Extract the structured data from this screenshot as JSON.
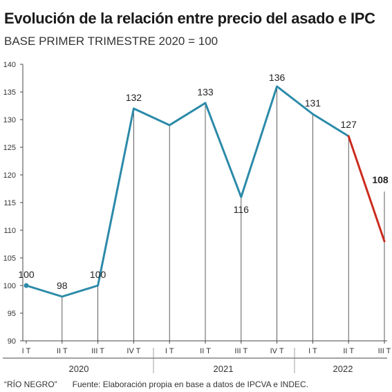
{
  "chart_data": {
    "type": "line",
    "title": "Evolución de la relación entre precio del asado e IPC",
    "subtitle": "BASE PRIMER TRIMESTRE 2020 = 100",
    "x": [
      "I T",
      "II T",
      "III T",
      "IV T",
      "I T",
      "II T",
      "III T",
      "IV T",
      "I T",
      "II T",
      "III T"
    ],
    "years": [
      {
        "label": "2020",
        "start": 0,
        "end": 3
      },
      {
        "label": "2021",
        "start": 4,
        "end": 7
      },
      {
        "label": "2022",
        "start": 8,
        "end": 10
      }
    ],
    "series": [
      {
        "values": [
          100,
          98,
          100,
          132,
          129,
          133,
          116,
          136,
          131,
          127,
          108
        ]
      }
    ],
    "data_labels": [
      "100",
      "98",
      "100",
      "132",
      "",
      "133",
      "116",
      "136",
      "131",
      "127",
      "108"
    ],
    "highlight_last_segment": true,
    "ylim": [
      90,
      140
    ],
    "yticks": [
      90,
      95,
      100,
      105,
      110,
      115,
      120,
      125,
      130,
      135,
      140
    ],
    "colors": {
      "line": "#2b8aa8",
      "highlight": "#cc2a1e",
      "drop": "#333333"
    }
  },
  "footer": {
    "credit": "“RÍO NEGRO”",
    "source": "Fuente: Elaboración propia en base a datos de IPCVA e INDEC."
  }
}
